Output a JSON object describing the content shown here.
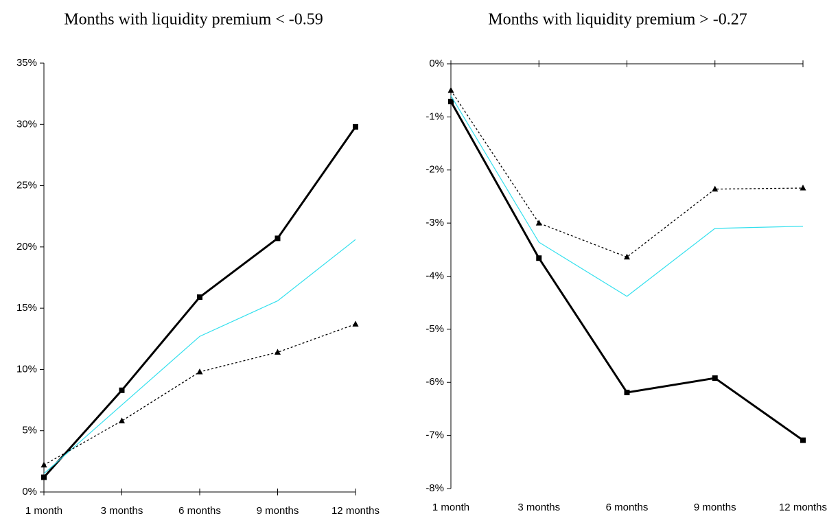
{
  "chart_data": [
    {
      "type": "line",
      "title": "Months with liquidity premium < -0.59",
      "categories": [
        "1 month",
        "3 months",
        "6 months",
        "9 months",
        "12 months"
      ],
      "series": [
        {
          "color": "#000000",
          "marker": "square",
          "dashed": false,
          "values": [
            1.2,
            8.3,
            15.9,
            20.7,
            29.8
          ]
        },
        {
          "color": "#33e0ee",
          "dashed": false,
          "values": [
            1.5,
            7.1,
            12.7,
            15.6,
            20.6
          ]
        },
        {
          "color": "#000000",
          "marker": "triangle",
          "dashed": true,
          "values": [
            2.2,
            5.8,
            9.8,
            11.4,
            13.7
          ]
        }
      ],
      "ylim": [
        0,
        35
      ],
      "yticks": [
        {
          "value": 0,
          "label": "0%"
        },
        {
          "value": 5,
          "label": "5%"
        },
        {
          "value": 10,
          "label": "10%"
        },
        {
          "value": 15,
          "label": "15%"
        },
        {
          "value": 20,
          "label": "20%"
        },
        {
          "value": 25,
          "label": "25%"
        },
        {
          "value": 30,
          "label": "30%"
        },
        {
          "value": 35,
          "label": "35%"
        }
      ],
      "grid": false
    },
    {
      "type": "line",
      "title": "Months with liquidity premium > -0.27",
      "categories": [
        "1 month",
        "3 months",
        "6 months",
        "9 months",
        "12 months"
      ],
      "series": [
        {
          "color": "#000000",
          "marker": "square",
          "dashed": false,
          "values": [
            -0.71,
            -3.66,
            -6.19,
            -5.92,
            -7.09
          ]
        },
        {
          "color": "#33e0ee",
          "dashed": false,
          "values": [
            -0.6,
            -3.36,
            -4.38,
            -3.1,
            -3.06
          ]
        },
        {
          "color": "#000000",
          "marker": "triangle",
          "dashed": true,
          "values": [
            -0.5,
            -3.0,
            -3.64,
            -2.36,
            -2.34
          ]
        }
      ],
      "ylim": [
        -8,
        0
      ],
      "yticks": [
        {
          "value": -8,
          "label": "-8%"
        },
        {
          "value": -7,
          "label": "-7%"
        },
        {
          "value": -6,
          "label": "-6%"
        },
        {
          "value": -5,
          "label": "-5%"
        },
        {
          "value": -4,
          "label": "-4%"
        },
        {
          "value": -3,
          "label": "-3%"
        },
        {
          "value": -2,
          "label": "-2%"
        },
        {
          "value": -1,
          "label": "-1%"
        },
        {
          "value": 0,
          "label": "0%"
        }
      ],
      "grid": false
    }
  ]
}
